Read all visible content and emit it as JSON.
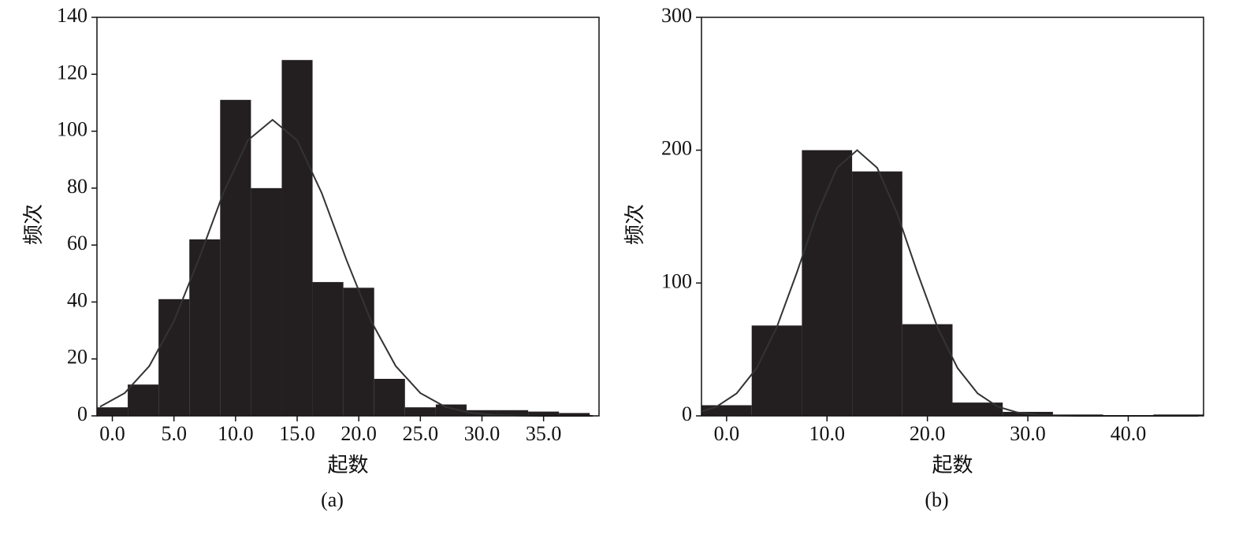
{
  "chart_data": [
    {
      "type": "histogram",
      "x_label": "起数",
      "y_label": "频次",
      "caption": "(a)",
      "color": "#231f20",
      "curve_color": "#333333",
      "bins": [
        -1.25,
        1.25,
        3.75,
        6.25,
        8.75,
        11.25,
        13.75,
        16.25,
        18.75,
        21.25,
        23.75,
        26.25,
        28.75,
        31.25,
        33.75,
        36.25,
        38.75
      ],
      "values": [
        3,
        11,
        41,
        62,
        111,
        80,
        125,
        47,
        45,
        13,
        3,
        4,
        2,
        2,
        1.5,
        1
      ],
      "curve": {
        "x": [
          -1,
          1,
          3,
          5,
          7,
          9,
          11,
          13,
          15,
          17,
          19,
          21,
          23,
          25,
          27,
          29,
          31,
          33,
          35,
          37,
          39
        ],
        "y": [
          3.2,
          8,
          17.5,
          33.3,
          54.8,
          78.2,
          96.8,
          104,
          96.8,
          78.2,
          54.8,
          33.3,
          17.5,
          8,
          3.2,
          1.1,
          0.3,
          0.1,
          0,
          0,
          0
        ]
      },
      "xlim": [
        -1.25,
        39.5
      ],
      "ylim": [
        0,
        140
      ],
      "xticks": [
        {
          "value": 0,
          "label": "0.0"
        },
        {
          "value": 5,
          "label": "5.0"
        },
        {
          "value": 10,
          "label": "10.0"
        },
        {
          "value": 15,
          "label": "15.0"
        },
        {
          "value": 20,
          "label": "20.0"
        },
        {
          "value": 25,
          "label": "25.0"
        },
        {
          "value": 30,
          "label": "30.0"
        },
        {
          "value": 35,
          "label": "35.0"
        }
      ],
      "yticks": [
        0,
        20,
        40,
        60,
        80,
        100,
        120,
        140
      ]
    },
    {
      "type": "histogram",
      "x_label": "起数",
      "y_label": "频次",
      "caption": "(b)",
      "color": "#231f20",
      "curve_color": "#333333",
      "bins": [
        -2.5,
        2.5,
        7.5,
        12.5,
        17.5,
        22.5,
        27.5,
        32.5,
        37.5,
        42.5,
        47.5
      ],
      "values": [
        8,
        68,
        200,
        184,
        69,
        10,
        3,
        1,
        0,
        1
      ],
      "curve": {
        "x": [
          -2.5,
          -1,
          1,
          3,
          5,
          7,
          9,
          11,
          13,
          15,
          17,
          19,
          21,
          23,
          25,
          27,
          29,
          31,
          33,
          35,
          37,
          39,
          41,
          43,
          45,
          47
        ],
        "y": [
          3.2,
          6.9,
          16.9,
          36,
          66.7,
          107.9,
          152,
          186.7,
          200,
          186.7,
          152,
          107.9,
          66.7,
          36,
          16.9,
          6.9,
          2.5,
          0.8,
          0.2,
          0,
          0,
          0,
          0,
          0,
          0,
          0
        ]
      },
      "xlim": [
        -2.5,
        47.5
      ],
      "ylim": [
        0,
        300
      ],
      "xticks": [
        {
          "value": 0,
          "label": "0.0"
        },
        {
          "value": 10,
          "label": "10.0"
        },
        {
          "value": 20,
          "label": "20.0"
        },
        {
          "value": 30,
          "label": "30.0"
        },
        {
          "value": 40,
          "label": "40.0"
        }
      ],
      "yticks": [
        0,
        100,
        200,
        300
      ]
    }
  ]
}
